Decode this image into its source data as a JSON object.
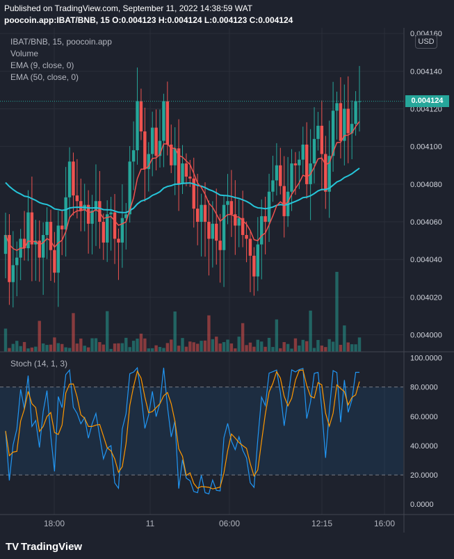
{
  "header": {
    "line1": "Published on TradingView.com, September 11, 2022 14:38:59 WAT",
    "symbol": "poocoin.app:IBAT/BNB, 15",
    "ohlc": "O:0.004123 H:0.004124 L:0.004123 C:0.004124"
  },
  "legend": {
    "title": "IBAT/BNB, 15, poocoin.app",
    "volume": "Volume",
    "ema9": "EMA (9, close, 0)",
    "ema50": "EMA (50, close, 0)",
    "stoch": "Stoch (14, 1, 3)"
  },
  "currency_button": "USD",
  "last_price_label": "0.004124",
  "brand": "TradingView",
  "colors": {
    "up": "#26a69a",
    "down": "#ef5350",
    "ema9": "#ef5350",
    "ema50": "#26c6da",
    "stoch_k": "#2196f3",
    "stoch_d": "#ff9800",
    "background": "#1e222d"
  },
  "chart_data": [
    {
      "type": "candlestick",
      "title": "IBAT/BNB, 15, poocoin.app",
      "x_tick_labels": [
        "18:00",
        "11",
        "06:00",
        "12:15",
        "16:00"
      ],
      "y_tick_labels": [
        "0.004160",
        "0.004140",
        "0.004120",
        "0.004100",
        "0.004080",
        "0.004060",
        "0.004040",
        "0.004020",
        "0.004000"
      ],
      "ylim": [
        0.003991,
        0.004163
      ],
      "last_price": 0.004124,
      "closes": [
        0.004053,
        0.004028,
        0.004037,
        0.004041,
        0.004051,
        0.004046,
        0.004065,
        0.004048,
        0.00405,
        0.004041,
        0.004053,
        0.00406,
        0.004045,
        0.004033,
        0.004058,
        0.004056,
        0.004073,
        0.004092,
        0.004074,
        0.004071,
        0.004066,
        0.004069,
        0.004059,
        0.004066,
        0.004071,
        0.00406,
        0.004049,
        0.004064,
        0.004065,
        0.004051,
        0.004049,
        0.004062,
        0.004064,
        0.004092,
        0.004098,
        0.004124,
        0.004108,
        0.004088,
        0.004096,
        0.00411,
        0.004095,
        0.004103,
        0.004124,
        0.004101,
        0.00409,
        0.004099,
        0.00408,
        0.004091,
        0.004084,
        0.004083,
        0.004067,
        0.00406,
        0.004069,
        0.00406,
        0.004051,
        0.004059,
        0.00405,
        0.004045,
        0.004069,
        0.004071,
        0.004064,
        0.004058,
        0.004062,
        0.004053,
        0.004051,
        0.004042,
        0.004031,
        0.004048,
        0.004063,
        0.00406,
        0.004076,
        0.004082,
        0.00409,
        0.004079,
        0.004063,
        0.004076,
        0.004091,
        0.00409,
        0.004093,
        0.004101,
        0.00408,
        0.004091,
        0.004104,
        0.004111,
        0.004096,
        0.004076,
        0.004095,
        0.004119,
        0.004123,
        0.004103,
        0.00412,
        0.004107,
        0.004112,
        0.004124,
        0.004124
      ]
    },
    {
      "type": "bar",
      "title": "Volume",
      "x_tick_labels": [
        "18:00",
        "11",
        "06:00",
        "12:15",
        "16:00"
      ]
    },
    {
      "type": "line",
      "title": "Stoch (14, 1, 3)",
      "y_tick_labels": [
        "100.0000",
        "80.0000",
        "60.0000",
        "40.0000",
        "20.0000",
        "0.0000"
      ],
      "ylim": [
        -7,
        104
      ],
      "bands": [
        20,
        80
      ]
    }
  ]
}
